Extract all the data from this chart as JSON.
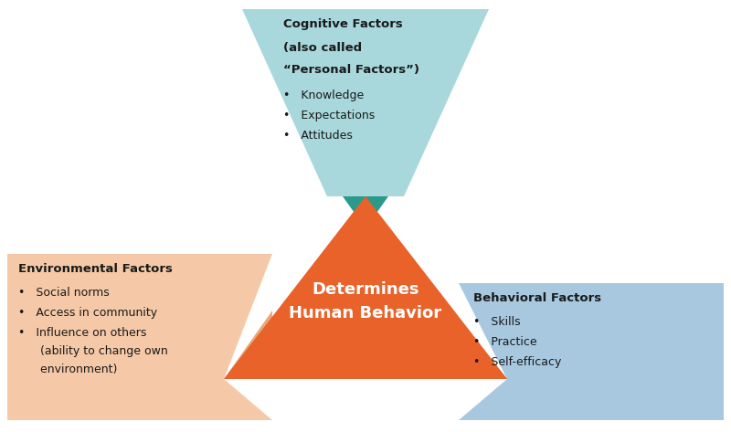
{
  "bg_color": "#ffffff",
  "orange_color": "#E8622A",
  "teal_light_color": "#A8D8DC",
  "teal_dark_color": "#2A9A8A",
  "peach_color": "#F5C9A8",
  "peach_tip_color": "#E8A87A",
  "blue_light_color": "#A8C8E0",
  "blue_dark_color": "#2A6AAD",
  "cognitive_title_line1": "Cognitive Factors",
  "cognitive_title_line2": "(also called",
  "cognitive_title_line3": "“Personal Factors”)",
  "cognitive_bullets": "•   Knowledge\n•   Expectations\n•   Attitudes",
  "environmental_title": "Environmental Factors",
  "environmental_bullets": "•   Social norms\n•   Access in community\n•   Influence on others\n      (ability to change own\n      environment)",
  "behavioral_title": "Behavioral Factors",
  "behavioral_bullets": "•   Skills\n•   Practice\n•   Self-efficacy",
  "center_label": "Determines\nHuman Behavior"
}
